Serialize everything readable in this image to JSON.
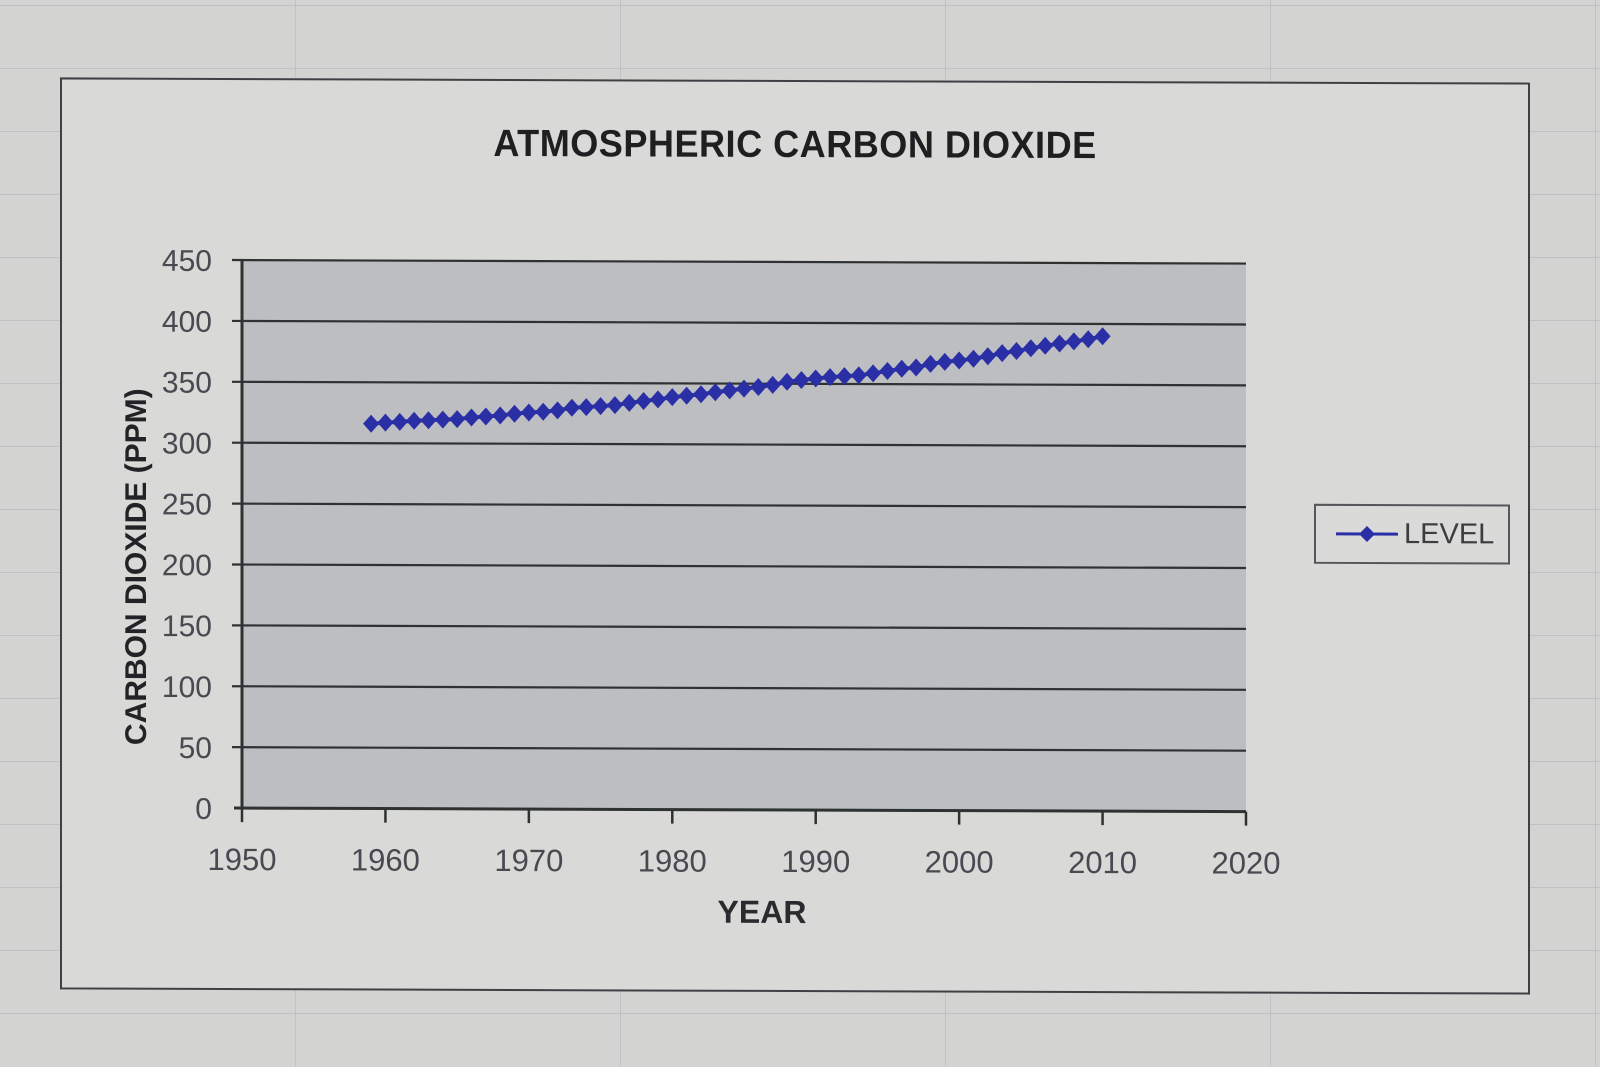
{
  "chart": {
    "title": "ATMOSPHERIC CARBON DIOXIDE",
    "x_axis_title": "YEAR",
    "y_axis_title": "CARBON DIOXIDE (PPM)",
    "legend_label": "LEVEL",
    "series_color": "#2b2fa6",
    "plot_bg": "#bcbec2"
  },
  "chart_data": {
    "type": "line",
    "title": "ATMOSPHERIC CARBON DIOXIDE",
    "xlabel": "YEAR",
    "ylabel": "CARBON DIOXIDE (PPM)",
    "xlim": [
      1950,
      2020
    ],
    "ylim": [
      0,
      450
    ],
    "x_ticks": [
      1950,
      1960,
      1970,
      1980,
      1990,
      2000,
      2010,
      2020
    ],
    "y_ticks": [
      0,
      50,
      100,
      150,
      200,
      250,
      300,
      350,
      400,
      450
    ],
    "grid": "horizontal major gridlines",
    "legend_position": "right",
    "marker": "diamond",
    "series": [
      {
        "name": "LEVEL",
        "x": [
          1959,
          1960,
          1961,
          1962,
          1963,
          1964,
          1965,
          1966,
          1967,
          1968,
          1969,
          1970,
          1971,
          1972,
          1973,
          1974,
          1975,
          1976,
          1977,
          1978,
          1979,
          1980,
          1981,
          1982,
          1983,
          1984,
          1985,
          1986,
          1987,
          1988,
          1989,
          1990,
          1991,
          1992,
          1993,
          1994,
          1995,
          1996,
          1997,
          1998,
          1999,
          2000,
          2001,
          2002,
          2003,
          2004,
          2005,
          2006,
          2007,
          2008,
          2009,
          2010
        ],
        "values": [
          316.0,
          316.9,
          317.6,
          318.5,
          319.0,
          319.6,
          320.0,
          321.4,
          322.2,
          323.1,
          324.6,
          325.7,
          326.3,
          327.5,
          329.7,
          330.2,
          331.1,
          332.0,
          333.8,
          335.4,
          336.8,
          338.7,
          339.9,
          341.1,
          342.8,
          344.4,
          345.9,
          347.2,
          349.0,
          351.6,
          353.1,
          354.4,
          355.6,
          356.4,
          357.1,
          358.8,
          360.8,
          362.6,
          363.7,
          366.7,
          368.4,
          369.6,
          371.1,
          373.2,
          375.8,
          377.5,
          379.8,
          381.9,
          383.8,
          385.6,
          387.4,
          389.9
        ]
      }
    ]
  }
}
